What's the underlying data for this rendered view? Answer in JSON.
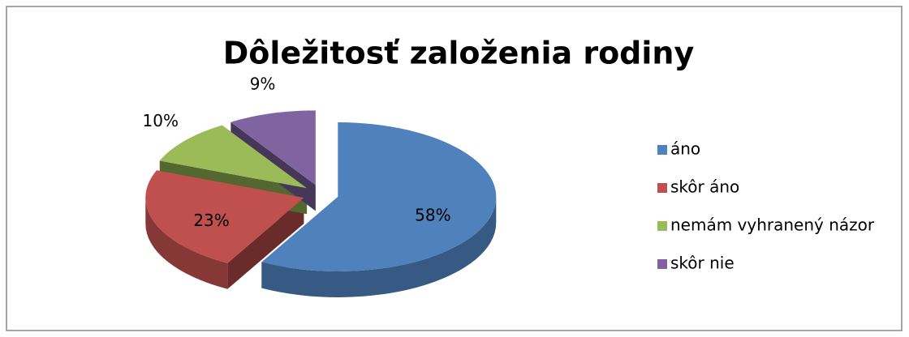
{
  "chart_data": {
    "type": "pie",
    "title": "Dôležitosť založenia rodiny",
    "categories": [
      "áno",
      "skôr áno",
      "nemám vyhranený názor",
      "skôr nie"
    ],
    "values": [
      58,
      23,
      10,
      9
    ],
    "value_labels": [
      "58%",
      "23%",
      "10%",
      "9%"
    ],
    "colors": [
      "#4f81bd",
      "#c0504d",
      "#9bbb59",
      "#8064a2"
    ],
    "legend": "right"
  }
}
